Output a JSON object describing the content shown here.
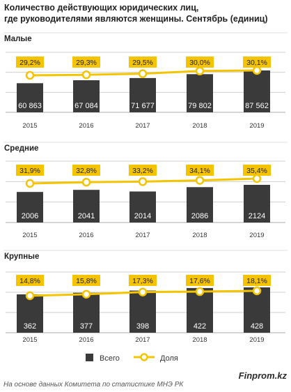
{
  "title": {
    "line1": "Количество действующих юридических лиц,",
    "line2": "где руководителями являются женщины. Сентябрь  (единиц)"
  },
  "colors": {
    "bar": "#3a3a3a",
    "line": "#f5c400",
    "label_bg": "#f5c400",
    "grid": "#cfcfcf"
  },
  "legend": {
    "bars": "Всего",
    "line": "Доля"
  },
  "source": "На основе данных  Комитета по статистике МНЭ РК",
  "brand": "Finprom.kz",
  "chart_data": [
    {
      "type": "bar",
      "title": "Малые",
      "categories": [
        "2015",
        "2016",
        "2017",
        "2018",
        "2019"
      ],
      "series": [
        {
          "name": "Всего",
          "values": [
            60863,
            67084,
            71677,
            79802,
            87562
          ],
          "labels": [
            "60 863",
            "67 084",
            "71 677",
            "79 802",
            "87 562"
          ]
        },
        {
          "name": "Доля",
          "type": "line",
          "values": [
            29.2,
            29.3,
            29.5,
            30.0,
            30.1
          ],
          "labels": [
            "29,2%",
            "29,3%",
            "29,5%",
            "30,0%",
            "30,1%"
          ]
        }
      ]
    },
    {
      "type": "bar",
      "title": "Средние",
      "categories": [
        "2015",
        "2016",
        "2017",
        "2018",
        "2019"
      ],
      "series": [
        {
          "name": "Всего",
          "values": [
            2006,
            2041,
            2014,
            2086,
            2124
          ],
          "labels": [
            "2006",
            "2041",
            "2014",
            "2086",
            "2124"
          ]
        },
        {
          "name": "Доля",
          "type": "line",
          "values": [
            31.9,
            32.8,
            33.2,
            34.1,
            35.4
          ],
          "labels": [
            "31,9%",
            "32,8%",
            "33,2%",
            "34,1%",
            "35,4%"
          ]
        }
      ]
    },
    {
      "type": "bar",
      "title": "Крупные",
      "categories": [
        "2015",
        "2016",
        "2017",
        "2018",
        "2019"
      ],
      "series": [
        {
          "name": "Всего",
          "values": [
            362,
            377,
            398,
            422,
            428
          ],
          "labels": [
            "362",
            "377",
            "398",
            "422",
            "428"
          ]
        },
        {
          "name": "Доля",
          "type": "line",
          "values": [
            14.8,
            15.8,
            17.3,
            17.6,
            18.1
          ],
          "labels": [
            "14,8%",
            "15,8%",
            "17,3%",
            "17,6%",
            "18,1%"
          ]
        }
      ]
    }
  ]
}
